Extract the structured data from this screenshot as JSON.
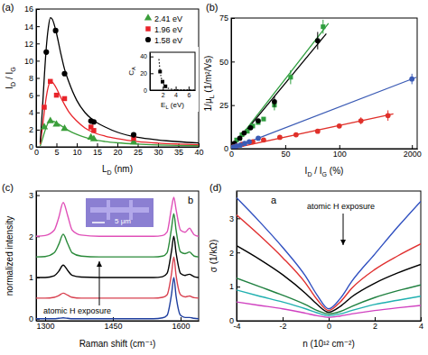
{
  "chart_data": [
    {
      "type": "scatter",
      "panel_label": "(a)",
      "x_label": [
        "L",
        "D",
        " (nm)"
      ],
      "y_label": [
        "I",
        "D",
        " / I",
        "G"
      ],
      "xlim": [
        0,
        40
      ],
      "xticks": [
        0,
        5,
        10,
        15,
        20,
        25,
        30,
        35,
        40
      ],
      "ylim": [
        0,
        16
      ],
      "yticks": [
        0,
        2,
        4,
        6,
        8,
        10,
        12,
        14,
        16
      ],
      "legend": "upper right",
      "series": [
        {
          "name": "2.41 eV",
          "color": "#3a9e3a",
          "marker": "triangle",
          "x": [
            2,
            3.5,
            5,
            7,
            13.5,
            14.2,
            24
          ],
          "values": [
            2.3,
            3.0,
            2.6,
            2.1,
            1.1,
            0.9,
            0.55
          ]
        },
        {
          "name": "1.96 eV",
          "color": "#e8242a",
          "marker": "square",
          "x": [
            2,
            3.5,
            5,
            7,
            13.5,
            14.2,
            24
          ],
          "values": [
            4.6,
            7.6,
            6.0,
            5.6,
            2.3,
            1.9,
            1.0
          ]
        },
        {
          "name": "1.58 eV",
          "color": "#000000",
          "marker": "circle",
          "x": [
            2.5,
            4.8,
            7,
            13.5,
            14.2,
            24
          ],
          "values": [
            11,
            13.5,
            8.5,
            3,
            2.9,
            1.4
          ]
        }
      ],
      "fits": [
        {
          "color": "#3a9e3a",
          "line_style": "solid",
          "x": [
            1,
            1.5,
            2,
            2.5,
            3,
            3.5,
            4,
            5,
            6,
            7,
            8,
            10,
            12,
            14,
            17,
            20,
            25,
            30,
            35,
            40
          ],
          "values": [
            0.1,
            0.8,
            1.6,
            2.3,
            2.8,
            3.0,
            3.0,
            2.8,
            2.5,
            2.2,
            1.9,
            1.45,
            1.1,
            0.85,
            0.62,
            0.47,
            0.32,
            0.23,
            0.17,
            0.13
          ]
        },
        {
          "color": "#e8242a",
          "line_style": "solid",
          "x": [
            1,
            1.5,
            2,
            2.5,
            3,
            3.5,
            4,
            5,
            6,
            7,
            8,
            10,
            12,
            14,
            17,
            20,
            25,
            30,
            35,
            40
          ],
          "values": [
            0.3,
            2,
            4,
            5.8,
            7,
            7.6,
            7.5,
            6.8,
            5.8,
            4.9,
            4.1,
            3.0,
            2.2,
            1.7,
            1.25,
            0.95,
            0.62,
            0.44,
            0.33,
            0.25
          ]
        },
        {
          "color": "#000000",
          "line_style": "solid",
          "x": [
            1,
            1.5,
            2,
            2.5,
            3,
            3.5,
            4,
            5,
            6,
            7,
            8,
            10,
            12,
            14,
            17,
            20,
            25,
            30,
            35,
            40
          ],
          "values": [
            0.5,
            4,
            8,
            11.5,
            13.8,
            15,
            14.8,
            13.2,
            11,
            9,
            7.6,
            5.4,
            4.0,
            3.1,
            2.3,
            1.7,
            1.1,
            0.8,
            0.6,
            0.45
          ]
        }
      ]
    },
    {
      "type": "scatter",
      "x_label": [
        "E",
        "L",
        " (eV)"
      ],
      "y_label": [
        "C",
        "A"
      ],
      "xlim": [
        0,
        7
      ],
      "xticks": [
        2,
        4,
        6
      ],
      "ylim": [
        0,
        45
      ],
      "yticks": [
        0,
        20,
        40
      ],
      "series": [
        {
          "color": "#000000",
          "marker": "square",
          "x": [
            1.58,
            1.96,
            2.41
          ],
          "values": [
            22,
            10,
            4.5
          ]
        }
      ],
      "fits": [
        {
          "color": "#000000",
          "line_style": "dotted",
          "x": [
            1.4,
            1.6,
            1.8,
            2.0,
            2.4,
            3,
            4,
            5,
            6,
            7
          ],
          "values": [
            36.9,
            21.6,
            13.5,
            8.9,
            4.27,
            1.75,
            0.55,
            0.23,
            0.11,
            0.06
          ]
        }
      ]
    },
    {
      "type": "scatter",
      "panel_label": "(b)",
      "x_label": [
        "I",
        "D",
        " / I",
        "G",
        " (%)"
      ],
      "y_label": [
        "1/μ",
        "L",
        " (1/m²/Vs)"
      ],
      "xlim": [
        0,
        172
      ],
      "xticks": [
        0,
        50,
        100
      ],
      "x2lim": [
        0,
        2058
      ],
      "x2ticks": [
        2000
      ],
      "ylim": [
        0,
        75
      ],
      "yticks": [
        0,
        25,
        50,
        75
      ],
      "series": [
        {
          "color": "#2e9e3e",
          "marker": "square",
          "x": [
            5,
            10,
            15,
            20,
            25,
            30,
            40,
            55,
            85
          ],
          "values": [
            5,
            8,
            10,
            13,
            15,
            17,
            25,
            41,
            70
          ],
          "errors": [
            null,
            null,
            null,
            null,
            null,
            null,
            3,
            4,
            4
          ]
        },
        {
          "color": "#000000",
          "marker": "circle",
          "x": [
            3,
            8,
            12,
            18,
            25,
            40,
            80
          ],
          "values": [
            3,
            6,
            9,
            12,
            16,
            27,
            62
          ],
          "errors": [
            null,
            null,
            null,
            null,
            null,
            3,
            5
          ]
        },
        {
          "color": "#e0302a",
          "marker": "circle",
          "x": [
            2,
            5,
            10,
            20,
            30,
            45,
            60,
            80,
            100,
            120,
            145
          ],
          "values": [
            1,
            1.5,
            2.5,
            4,
            5,
            6.5,
            8,
            10,
            13,
            16,
            19
          ],
          "errors": [
            null,
            null,
            null,
            null,
            null,
            null,
            null,
            null,
            null,
            2,
            3
          ]
        },
        {
          "color": "#3b5bb5",
          "marker": "circle",
          "axis": "x2",
          "x": [
            10,
            30,
            60,
            100,
            150,
            200,
            300,
            2000
          ],
          "values": [
            0.5,
            1,
            1.5,
            2,
            3,
            4,
            6,
            40
          ],
          "errors": [
            null,
            null,
            null,
            null,
            null,
            null,
            null,
            3
          ]
        }
      ],
      "fits": [
        {
          "color": "#2e9e3e",
          "line_style": "solid",
          "x": [
            0,
            90
          ],
          "values": [
            0,
            72
          ]
        },
        {
          "color": "#000000",
          "line_style": "solid",
          "x": [
            0,
            88
          ],
          "values": [
            0,
            66
          ]
        },
        {
          "color": "#e0302a",
          "line_style": "solid",
          "x": [
            0,
            150
          ],
          "values": [
            0,
            20
          ]
        },
        {
          "color": "#3b5bb5",
          "line_style": "solid",
          "axis": "x2",
          "x": [
            0,
            2050
          ],
          "values": [
            0,
            41
          ]
        }
      ]
    },
    {
      "type": "line",
      "panel_label": "(c)",
      "inner_label": "b",
      "annotation": "atomic H exposure",
      "inset_label": "5 μm",
      "x_label": [
        "Raman shift (cm⁻¹)"
      ],
      "y_label": [
        "normalized intensity"
      ],
      "xlim": [
        1280,
        1640
      ],
      "xticks": [
        1300,
        1450,
        1600
      ],
      "ylim": [
        -0.05,
        3.1
      ],
      "yticks": [
        0,
        1,
        2,
        3
      ],
      "x": [
        1280,
        1300,
        1320,
        1330,
        1340,
        1350,
        1360,
        1380,
        1420,
        1460,
        1500,
        1540,
        1560,
        1570,
        1580,
        1585,
        1590,
        1600,
        1610,
        1615,
        1620,
        1625,
        1630,
        1640
      ],
      "series": [
        {
          "color": "#1f3f9f",
          "values": [
            0,
            0,
            0,
            0.01,
            0.02,
            0.01,
            0,
            0,
            0,
            0,
            0,
            0,
            0.02,
            0.08,
            0.6,
            1.0,
            0.55,
            0.08,
            0.03,
            0.03,
            0.03,
            0.02,
            0.01,
            0
          ]
        },
        {
          "color": "#d8404f",
          "values": [
            0.5,
            0.5,
            0.52,
            0.56,
            0.62,
            0.57,
            0.52,
            0.5,
            0.5,
            0.5,
            0.5,
            0.5,
            0.52,
            0.58,
            1.1,
            1.5,
            1.05,
            0.58,
            0.53,
            0.54,
            0.55,
            0.53,
            0.51,
            0.5
          ]
        },
        {
          "color": "#000000",
          "values": [
            1,
            1,
            1.04,
            1.15,
            1.3,
            1.17,
            1.05,
            1.01,
            1,
            1,
            1,
            1,
            1.02,
            1.1,
            1.65,
            2.0,
            1.6,
            1.1,
            1.05,
            1.07,
            1.08,
            1.05,
            1.02,
            1
          ]
        },
        {
          "color": "#2a8a3a",
          "values": [
            1.5,
            1.51,
            1.6,
            1.8,
            2.05,
            1.82,
            1.6,
            1.52,
            1.5,
            1.5,
            1.5,
            1.5,
            1.52,
            1.6,
            2.2,
            2.55,
            2.15,
            1.62,
            1.58,
            1.6,
            1.62,
            1.57,
            1.52,
            1.5
          ]
        },
        {
          "color": "#e050b8",
          "values": [
            2,
            2.02,
            2.15,
            2.45,
            2.82,
            2.5,
            2.15,
            2.03,
            2,
            2,
            2,
            2,
            2.02,
            2.1,
            2.7,
            2.95,
            2.65,
            2.15,
            2.1,
            2.15,
            2.2,
            2.12,
            2.04,
            2
          ]
        }
      ]
    },
    {
      "type": "line",
      "panel_label": "(d)",
      "inner_label": "a",
      "annotation": "atomic H exposure",
      "x_label": [
        "n (10¹² cm⁻²)"
      ],
      "y_label": [
        "σ (1/kΩ)"
      ],
      "xlim": [
        -4,
        4
      ],
      "xticks": [
        -4,
        -2,
        0,
        2,
        4
      ],
      "ylim": [
        0,
        3.8
      ],
      "yticks": [
        0,
        1,
        2,
        3
      ],
      "x": [
        -4,
        -3,
        -2,
        -1,
        -0.5,
        0,
        0.5,
        1,
        2,
        3,
        4
      ],
      "series": [
        {
          "color": "#3050c0",
          "values": [
            3.6,
            2.9,
            2.15,
            1.3,
            0.75,
            0.35,
            0.65,
            1.15,
            1.95,
            2.75,
            3.5
          ]
        },
        {
          "color": "#e03030",
          "values": [
            3.1,
            2.5,
            1.85,
            1.1,
            0.62,
            0.3,
            0.55,
            0.95,
            1.5,
            1.9,
            2.25
          ]
        },
        {
          "color": "#000000",
          "values": [
            2.2,
            1.8,
            1.35,
            0.8,
            0.48,
            0.25,
            0.42,
            0.7,
            1.1,
            1.4,
            1.65
          ]
        },
        {
          "color": "#208040",
          "values": [
            1.25,
            1.0,
            0.75,
            0.47,
            0.3,
            0.2,
            0.27,
            0.42,
            0.68,
            0.88,
            1.05
          ]
        },
        {
          "color": "#20b0b0",
          "values": [
            0.9,
            0.72,
            0.55,
            0.35,
            0.23,
            0.15,
            0.2,
            0.3,
            0.48,
            0.6,
            0.72
          ]
        },
        {
          "color": "#d040c0",
          "values": [
            0.55,
            0.45,
            0.35,
            0.22,
            0.15,
            0.1,
            0.14,
            0.2,
            0.3,
            0.38,
            0.45
          ]
        }
      ]
    }
  ]
}
